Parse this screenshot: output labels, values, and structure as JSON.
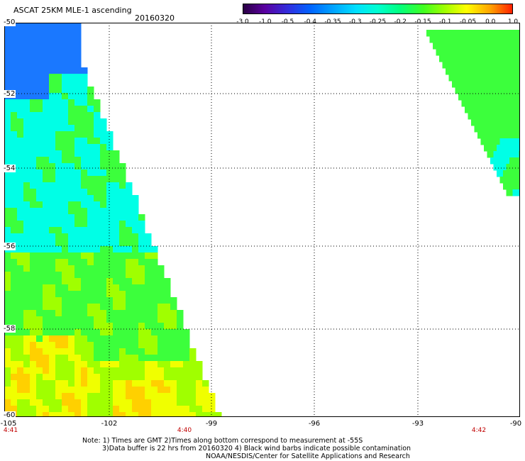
{
  "title": "ASCAT 25KM MLE-1 ascending",
  "date": "20160320",
  "colorbar": {
    "tick_labels": [
      "-3.0",
      "-1.0",
      "-0.5",
      "-0.4",
      "-0.35",
      "-0.3",
      "-0.25",
      "-0.2",
      "-0.15",
      "-0.1",
      "-0.05",
      "0.0",
      "1.0"
    ],
    "colors": [
      "#2a0044",
      "#5a00a0",
      "#3030e0",
      "#0064ff",
      "#00a0ff",
      "#00e0ff",
      "#00ffd0",
      "#00ff80",
      "#40ff20",
      "#a0ff00",
      "#ffff00",
      "#ffa000",
      "#ff2000"
    ]
  },
  "map": {
    "lat_labels": [
      "-50",
      "-52",
      "-54",
      "-56",
      "-58",
      "-60"
    ],
    "lon_labels": [
      "-105",
      "-102",
      "-99",
      "-96",
      "-93",
      "-90"
    ],
    "time_labels": [
      "4:41",
      "4:40",
      "4:42"
    ],
    "colors": {
      "blue": "#1a78ff",
      "cyan": "#00ffe6",
      "green": "#3cff3c",
      "lime": "#a0ff00",
      "yellow": "#f0ff00",
      "orange": "#ffd000",
      "red": "#ff6000"
    }
  },
  "notes": {
    "line1": "Note: 1) Times are GMT 2)Times along bottom correspond to measurement at -55S",
    "line2": "3)Data buffer is 22 hrs from 20160320 4) Black wind barbs indicate possible contamination",
    "line3": "NOAA/NESDIS/Center for Satellite Applications and Research"
  }
}
